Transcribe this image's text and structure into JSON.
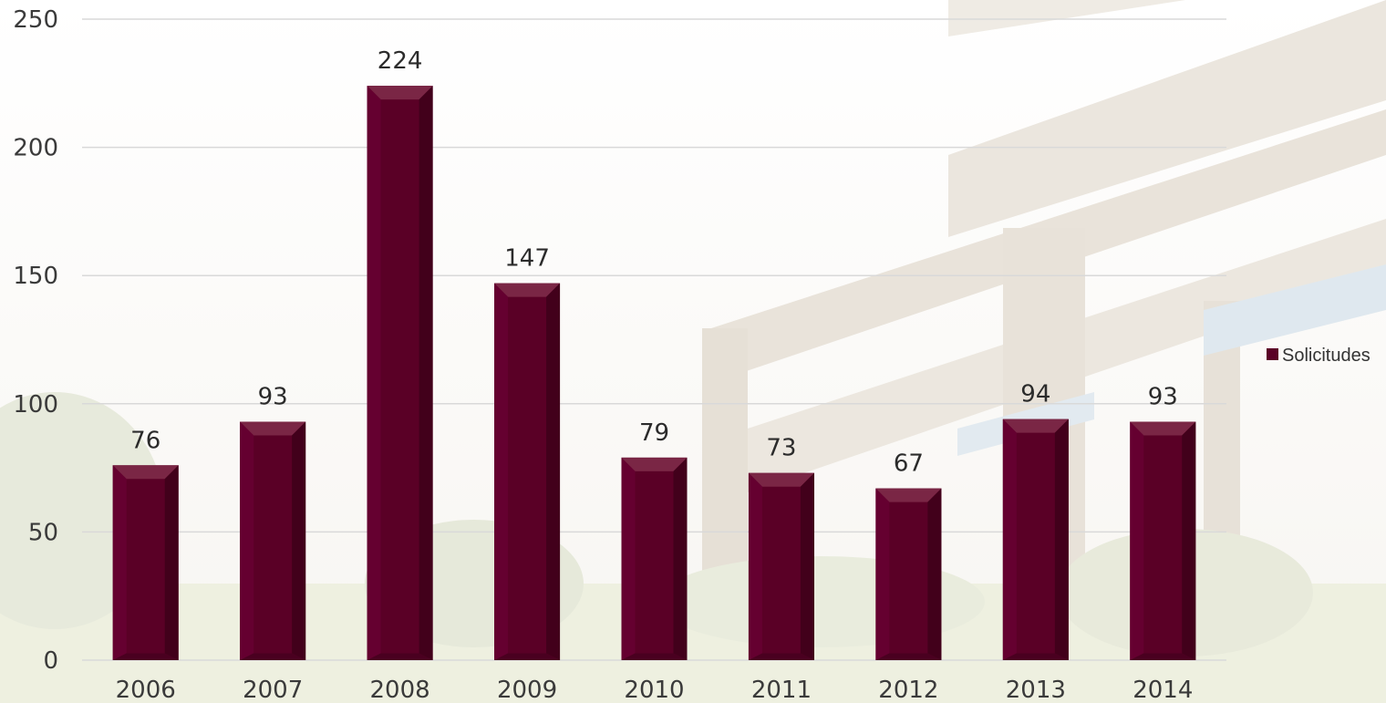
{
  "chart_data": {
    "type": "bar",
    "categories": [
      "2006",
      "2007",
      "2008",
      "2009",
      "2010",
      "2011",
      "2012",
      "2013",
      "2014"
    ],
    "series": [
      {
        "name": "Solicitudes",
        "values": [
          76,
          93,
          224,
          147,
          79,
          73,
          67,
          94,
          93
        ]
      }
    ],
    "data_labels": [
      "76",
      "93",
      "224",
      "147",
      "79",
      "73",
      "67",
      "94",
      "93"
    ],
    "yticks": [
      "0",
      "50",
      "100",
      "150",
      "200",
      "250"
    ],
    "ylim": [
      0,
      250
    ],
    "grid": true,
    "legend_position": "right",
    "bar_color": "#5a0026",
    "title": "",
    "xlabel": "",
    "ylabel": ""
  }
}
